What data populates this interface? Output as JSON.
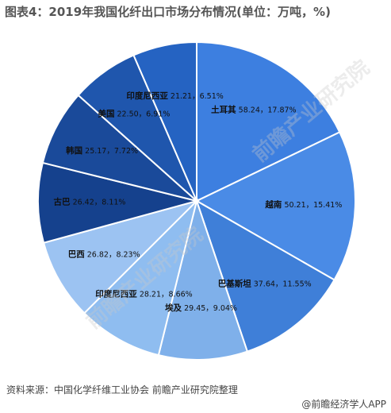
{
  "header": {
    "title": "图表4：2019年我国化纤出口市场分布情况(单位：万吨，%)"
  },
  "footer": {
    "source": "资料来源：中国化学纤维工业协会 前瞻产业研究院整理",
    "brand": "@前瞻经济学人APP"
  },
  "watermark": "前瞻产业研究院",
  "chart_data": {
    "type": "pie",
    "unit": "万吨, %",
    "slices": [
      {
        "name": "土耳其",
        "value": 58.24,
        "percent": 17.87,
        "label": "58.24，17.87%",
        "color": "#3d7fe0"
      },
      {
        "name": "越南",
        "value": 50.21,
        "percent": 15.41,
        "label": "50.21，15.41%",
        "color": "#4a8be6"
      },
      {
        "name": "巴基斯坦",
        "value": 37.64,
        "percent": 11.55,
        "label": "37.64，11.55%",
        "color": "#3f7fd8"
      },
      {
        "name": "埃及",
        "value": 29.45,
        "percent": 9.04,
        "label": "29.45，9.04%",
        "color": "#7fb0ea"
      },
      {
        "name": "印度尼西亚",
        "value": 28.21,
        "percent": 8.66,
        "label": "28.21，8.66%",
        "color": "#8fbdf0"
      },
      {
        "name": "巴西",
        "value": 26.82,
        "percent": 8.23,
        "label": "26.82，8.23%",
        "color": "#9cc3f2"
      },
      {
        "name": "古巴",
        "value": 26.42,
        "percent": 8.11,
        "label": "26.42，8.11%",
        "color": "#15418d"
      },
      {
        "name": "韩国",
        "value": 25.17,
        "percent": 7.72,
        "label": "25.17，7.72%",
        "color": "#1a4a9a"
      },
      {
        "name": "美国",
        "value": 22.5,
        "percent": 6.91,
        "label": "22.50，6.91%",
        "color": "#1f56ad"
      },
      {
        "name": "印度尼西亚",
        "value": 21.21,
        "percent": 6.51,
        "label": "21.21，6.51%",
        "color": "#2563c2"
      }
    ]
  }
}
